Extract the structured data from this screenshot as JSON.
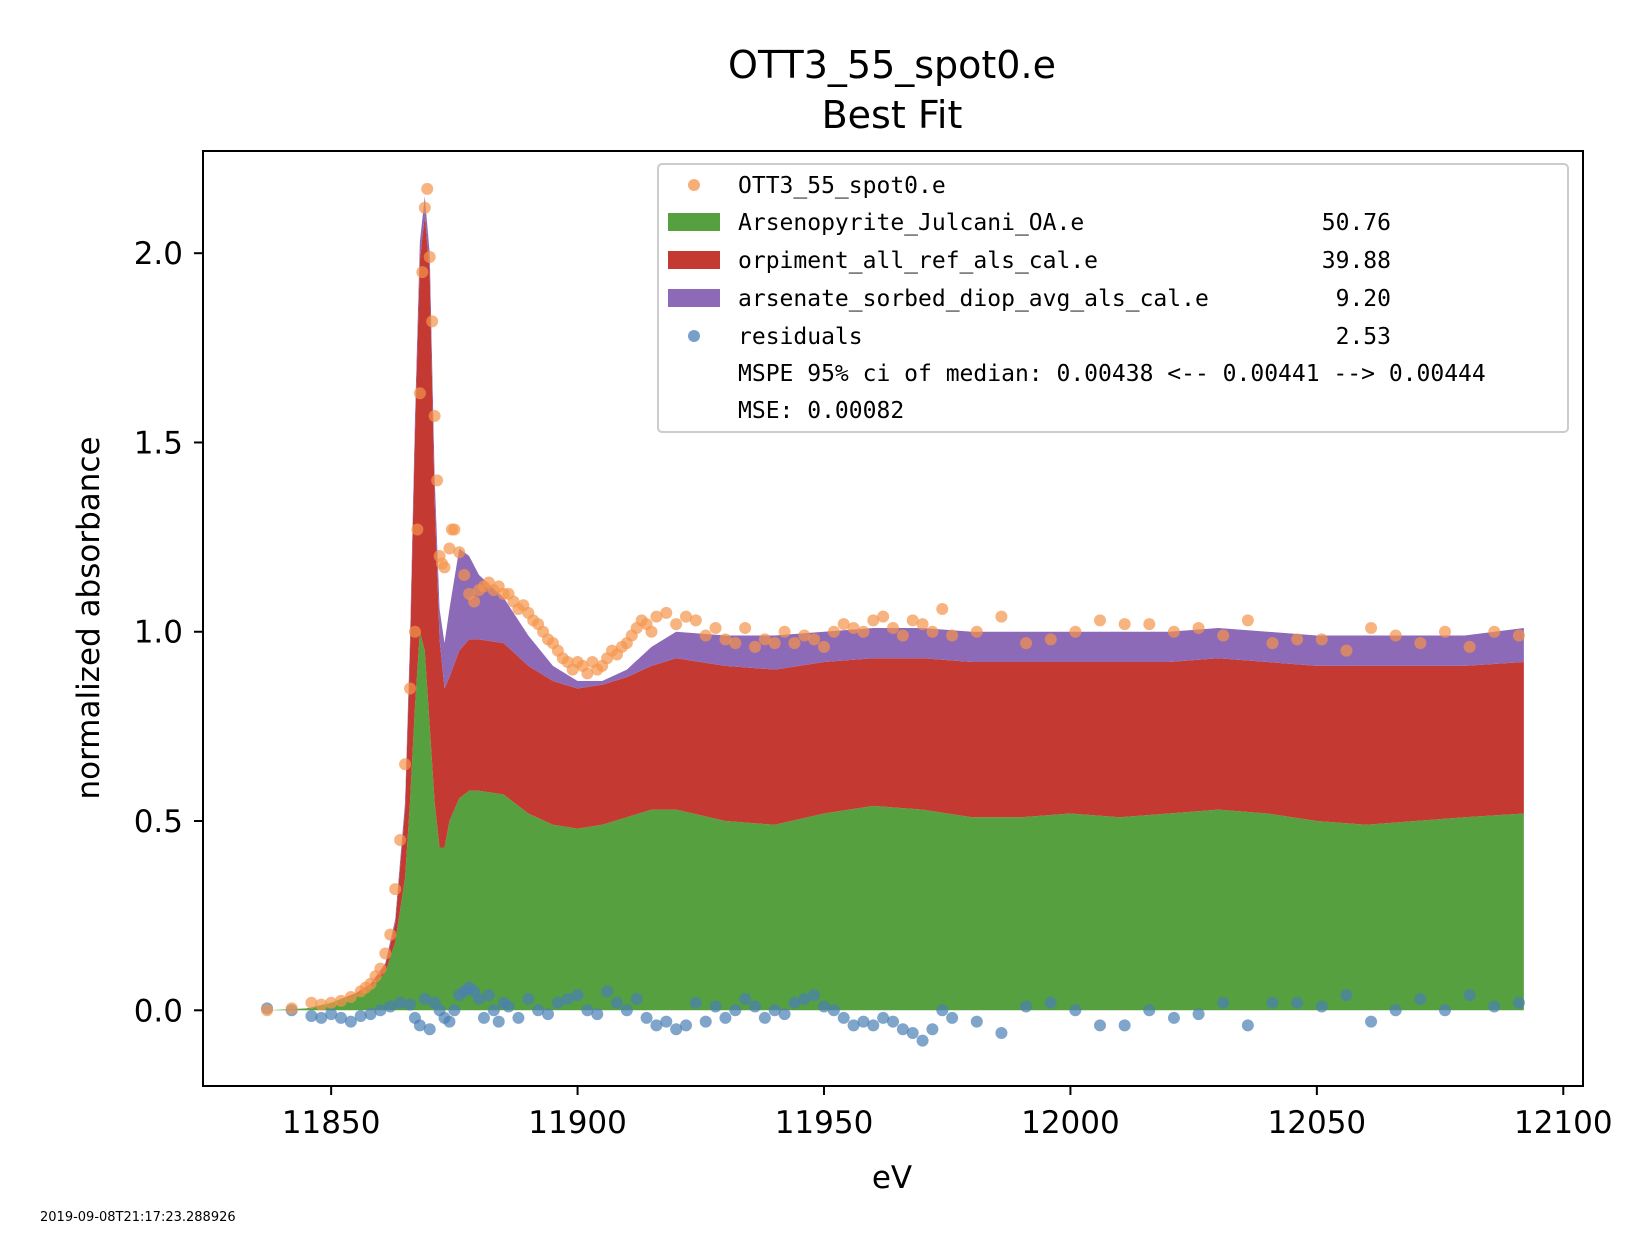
{
  "colors": {
    "data_points": "#f5944a",
    "arsenopyrite": "#56a03f",
    "orpiment": "#c43a32",
    "arsenate": "#8d6ab8",
    "residuals": "#4a7fb4"
  },
  "chart_data": {
    "type": "area",
    "title": "OTT3_55_spot0.e",
    "subtitle": "Best Fit",
    "xlabel": "eV",
    "ylabel": "normalized absorbance",
    "xlim": [
      11824,
      12104
    ],
    "ylim": [
      -0.2,
      2.27
    ],
    "xticks": [
      "11850",
      "11900",
      "11950",
      "12000",
      "12050",
      "12100"
    ],
    "yticks": [
      "0.0",
      "0.5",
      "1.0",
      "1.5",
      "2.0"
    ],
    "legend_position": "upper-right",
    "legend": [
      {
        "key": "data",
        "label": "OTT3_55_spot0.e",
        "value": "",
        "marker": "circle"
      },
      {
        "key": "arsenopyrite",
        "label": "Arsenopyrite_Julcani_OA.e",
        "value": "50.76",
        "marker": "patch"
      },
      {
        "key": "orpiment",
        "label": "orpiment_all_ref_als_cal.e",
        "value": "39.88",
        "marker": "patch"
      },
      {
        "key": "arsenate",
        "label": "arsenate_sorbed_diop_avg_als_cal.e",
        "value": "9.20",
        "marker": "patch"
      },
      {
        "key": "residuals",
        "label": "residuals",
        "value": "2.53",
        "marker": "circle"
      }
    ],
    "stats": [
      "MSPE 95% ci of median: 0.00438 <-- 0.00441 --> 0.00444",
      "MSE: 0.00082"
    ],
    "stacked_series": [
      {
        "key": "arsenopyrite",
        "x": [
          11837,
          11845,
          11850,
          11855,
          11858,
          11861,
          11863,
          11865,
          11866,
          11867,
          11868,
          11869,
          11870,
          11871,
          11872,
          11873,
          11874,
          11876,
          11878,
          11880,
          11885,
          11890,
          11895,
          11900,
          11905,
          11910,
          11915,
          11920,
          11930,
          11940,
          11950,
          11960,
          11970,
          11980,
          11990,
          12000,
          12010,
          12020,
          12030,
          12040,
          12050,
          12060,
          12070,
          12080,
          12092
        ],
        "values": [
          0.0,
          0.005,
          0.02,
          0.04,
          0.06,
          0.1,
          0.18,
          0.35,
          0.55,
          0.8,
          1.0,
          0.95,
          0.75,
          0.55,
          0.43,
          0.43,
          0.5,
          0.56,
          0.58,
          0.58,
          0.57,
          0.52,
          0.49,
          0.48,
          0.49,
          0.51,
          0.53,
          0.53,
          0.5,
          0.49,
          0.52,
          0.54,
          0.53,
          0.51,
          0.51,
          0.52,
          0.51,
          0.52,
          0.53,
          0.52,
          0.5,
          0.49,
          0.5,
          0.51,
          0.52
        ]
      },
      {
        "key": "orpiment",
        "x": [
          11837,
          11845,
          11850,
          11855,
          11858,
          11861,
          11863,
          11865,
          11866,
          11867,
          11868,
          11869,
          11870,
          11871,
          11872,
          11873,
          11874,
          11876,
          11878,
          11880,
          11885,
          11890,
          11895,
          11900,
          11905,
          11910,
          11915,
          11920,
          11930,
          11940,
          11950,
          11960,
          11970,
          11980,
          11990,
          12000,
          12010,
          12020,
          12030,
          12040,
          12050,
          12060,
          12070,
          12080,
          12092
        ],
        "values": [
          0.0,
          0.0,
          0.0,
          0.005,
          0.01,
          0.02,
          0.05,
          0.18,
          0.4,
          0.72,
          0.98,
          1.15,
          1.2,
          0.8,
          0.55,
          0.42,
          0.38,
          0.39,
          0.4,
          0.4,
          0.4,
          0.39,
          0.38,
          0.37,
          0.37,
          0.37,
          0.38,
          0.4,
          0.41,
          0.41,
          0.4,
          0.39,
          0.4,
          0.41,
          0.41,
          0.4,
          0.41,
          0.4,
          0.4,
          0.4,
          0.41,
          0.42,
          0.41,
          0.4,
          0.4
        ]
      },
      {
        "key": "arsenate",
        "x": [
          11837,
          11845,
          11850,
          11855,
          11858,
          11861,
          11863,
          11865,
          11866,
          11867,
          11868,
          11869,
          11870,
          11871,
          11872,
          11873,
          11874,
          11876,
          11878,
          11880,
          11885,
          11890,
          11895,
          11900,
          11905,
          11910,
          11915,
          11920,
          11930,
          11940,
          11950,
          11960,
          11970,
          11980,
          11990,
          12000,
          12010,
          12020,
          12030,
          12040,
          12050,
          12060,
          12070,
          12080,
          12092
        ],
        "values": [
          0.0,
          0.0,
          0.0,
          0.0,
          0.0,
          0.005,
          0.01,
          0.02,
          0.03,
          0.04,
          0.05,
          0.05,
          0.05,
          0.06,
          0.08,
          0.12,
          0.18,
          0.27,
          0.22,
          0.17,
          0.12,
          0.08,
          0.04,
          0.02,
          0.01,
          0.02,
          0.05,
          0.07,
          0.08,
          0.09,
          0.08,
          0.08,
          0.08,
          0.08,
          0.08,
          0.08,
          0.08,
          0.08,
          0.08,
          0.08,
          0.08,
          0.08,
          0.08,
          0.08,
          0.09
        ]
      }
    ],
    "data_points": {
      "key": "data",
      "x": [
        11837,
        11842,
        11846,
        11848,
        11850,
        11852,
        11854,
        11856,
        11857,
        11858,
        11859,
        11860,
        11861,
        11862,
        11863,
        11864,
        11865,
        11866,
        11867,
        11867.5,
        11868,
        11868.5,
        11869,
        11869.5,
        11870,
        11870.5,
        11871,
        11871.5,
        11872,
        11872.5,
        11873,
        11874,
        11874.5,
        11875,
        11876,
        11877,
        11878,
        11879,
        11880,
        11881,
        11882,
        11883,
        11884,
        11885,
        11886,
        11887,
        11888,
        11889,
        11890,
        11891,
        11892,
        11893,
        11894,
        11895,
        11896,
        11897,
        11898,
        11899,
        11900,
        11901,
        11902,
        11903,
        11904,
        11905,
        11906,
        11907,
        11908,
        11909,
        11910,
        11911,
        11912,
        11913,
        11914,
        11915,
        11916,
        11918,
        11920,
        11922,
        11924,
        11926,
        11928,
        11930,
        11932,
        11934,
        11936,
        11938,
        11940,
        11942,
        11944,
        11946,
        11948,
        11950,
        11952,
        11954,
        11956,
        11958,
        11960,
        11962,
        11964,
        11966,
        11968,
        11970,
        11972,
        11974,
        11976,
        11981,
        11986,
        11991,
        11996,
        12001,
        12006,
        12011,
        12016,
        12021,
        12026,
        12031,
        12036,
        12041,
        12046,
        12051,
        12056,
        12061,
        12066,
        12071,
        12076,
        12081,
        12086,
        12091
      ],
      "values": [
        0.0,
        0.005,
        0.02,
        0.015,
        0.02,
        0.025,
        0.035,
        0.05,
        0.06,
        0.07,
        0.09,
        0.11,
        0.15,
        0.2,
        0.32,
        0.45,
        0.65,
        0.85,
        1.0,
        1.27,
        1.63,
        1.95,
        2.12,
        2.17,
        1.99,
        1.82,
        1.57,
        1.4,
        1.2,
        1.18,
        1.17,
        1.22,
        1.27,
        1.27,
        1.21,
        1.15,
        1.1,
        1.08,
        1.11,
        1.12,
        1.13,
        1.11,
        1.12,
        1.1,
        1.1,
        1.08,
        1.06,
        1.07,
        1.05,
        1.03,
        1.02,
        1.0,
        0.98,
        0.97,
        0.95,
        0.93,
        0.92,
        0.9,
        0.92,
        0.91,
        0.89,
        0.92,
        0.9,
        0.91,
        0.93,
        0.95,
        0.94,
        0.96,
        0.97,
        0.99,
        1.01,
        1.03,
        1.02,
        1.0,
        1.04,
        1.05,
        1.02,
        1.04,
        1.03,
        0.99,
        1.01,
        0.98,
        0.97,
        1.01,
        0.96,
        0.98,
        0.97,
        1.0,
        0.97,
        0.99,
        0.98,
        0.96,
        1.0,
        1.02,
        1.01,
        1.0,
        1.03,
        1.04,
        1.01,
        0.99,
        1.03,
        1.02,
        1.0,
        1.06,
        0.99,
        1.0,
        1.04,
        0.97,
        0.98,
        1.0,
        1.03,
        1.02,
        1.02,
        1.0,
        1.01,
        0.99,
        1.03,
        0.97,
        0.98,
        0.98,
        0.95,
        1.01,
        0.99,
        0.97,
        1.0,
        0.96,
        1.0,
        0.99
      ]
    },
    "residuals": {
      "key": "residuals",
      "x": [
        11837,
        11842,
        11846,
        11848,
        11850,
        11852,
        11854,
        11856,
        11858,
        11860,
        11862,
        11864,
        11866,
        11867,
        11868,
        11869,
        11870,
        11871,
        11872,
        11873,
        11874,
        11875,
        11876,
        11877,
        11878,
        11879,
        11880,
        11881,
        11882,
        11883,
        11884,
        11885,
        11886,
        11888,
        11890,
        11892,
        11894,
        11896,
        11898,
        11900,
        11902,
        11904,
        11906,
        11908,
        11910,
        11912,
        11914,
        11916,
        11918,
        11920,
        11922,
        11924,
        11926,
        11928,
        11930,
        11932,
        11934,
        11936,
        11938,
        11940,
        11942,
        11944,
        11946,
        11948,
        11950,
        11952,
        11954,
        11956,
        11958,
        11960,
        11962,
        11964,
        11966,
        11968,
        11970,
        11972,
        11974,
        11976,
        11981,
        11986,
        11991,
        11996,
        12001,
        12006,
        12011,
        12016,
        12021,
        12026,
        12031,
        12036,
        12041,
        12046,
        12051,
        12056,
        12061,
        12066,
        12071,
        12076,
        12081,
        12086,
        12091
      ],
      "values": [
        0.005,
        0.0,
        -0.015,
        -0.02,
        -0.01,
        -0.02,
        -0.03,
        -0.015,
        -0.01,
        0.0,
        0.01,
        0.02,
        0.015,
        -0.02,
        -0.04,
        0.03,
        -0.05,
        0.02,
        0.0,
        -0.02,
        -0.03,
        0.0,
        0.04,
        0.05,
        0.06,
        0.05,
        0.03,
        -0.02,
        0.04,
        0.0,
        -0.03,
        0.02,
        0.01,
        -0.02,
        0.03,
        0.0,
        -0.01,
        0.02,
        0.03,
        0.04,
        0.0,
        -0.01,
        0.05,
        0.02,
        0.0,
        0.03,
        -0.02,
        -0.04,
        -0.03,
        -0.05,
        -0.04,
        0.02,
        -0.03,
        0.01,
        -0.02,
        0.0,
        0.03,
        0.01,
        -0.02,
        0.0,
        -0.01,
        0.02,
        0.03,
        0.04,
        0.01,
        0.0,
        -0.02,
        -0.04,
        -0.03,
        -0.04,
        -0.02,
        -0.03,
        -0.05,
        -0.06,
        -0.08,
        -0.05,
        0.0,
        -0.02,
        -0.03,
        -0.06,
        0.01,
        0.02,
        0.0,
        -0.04,
        -0.04,
        0.0,
        -0.02,
        -0.01,
        0.02,
        -0.04,
        0.02,
        0.02,
        0.01,
        0.04,
        -0.03,
        0.0,
        0.03,
        0.0,
        0.04,
        0.01,
        0.02
      ]
    }
  },
  "footer": {
    "timestamp": "2019-09-08T21:17:23.288926"
  }
}
